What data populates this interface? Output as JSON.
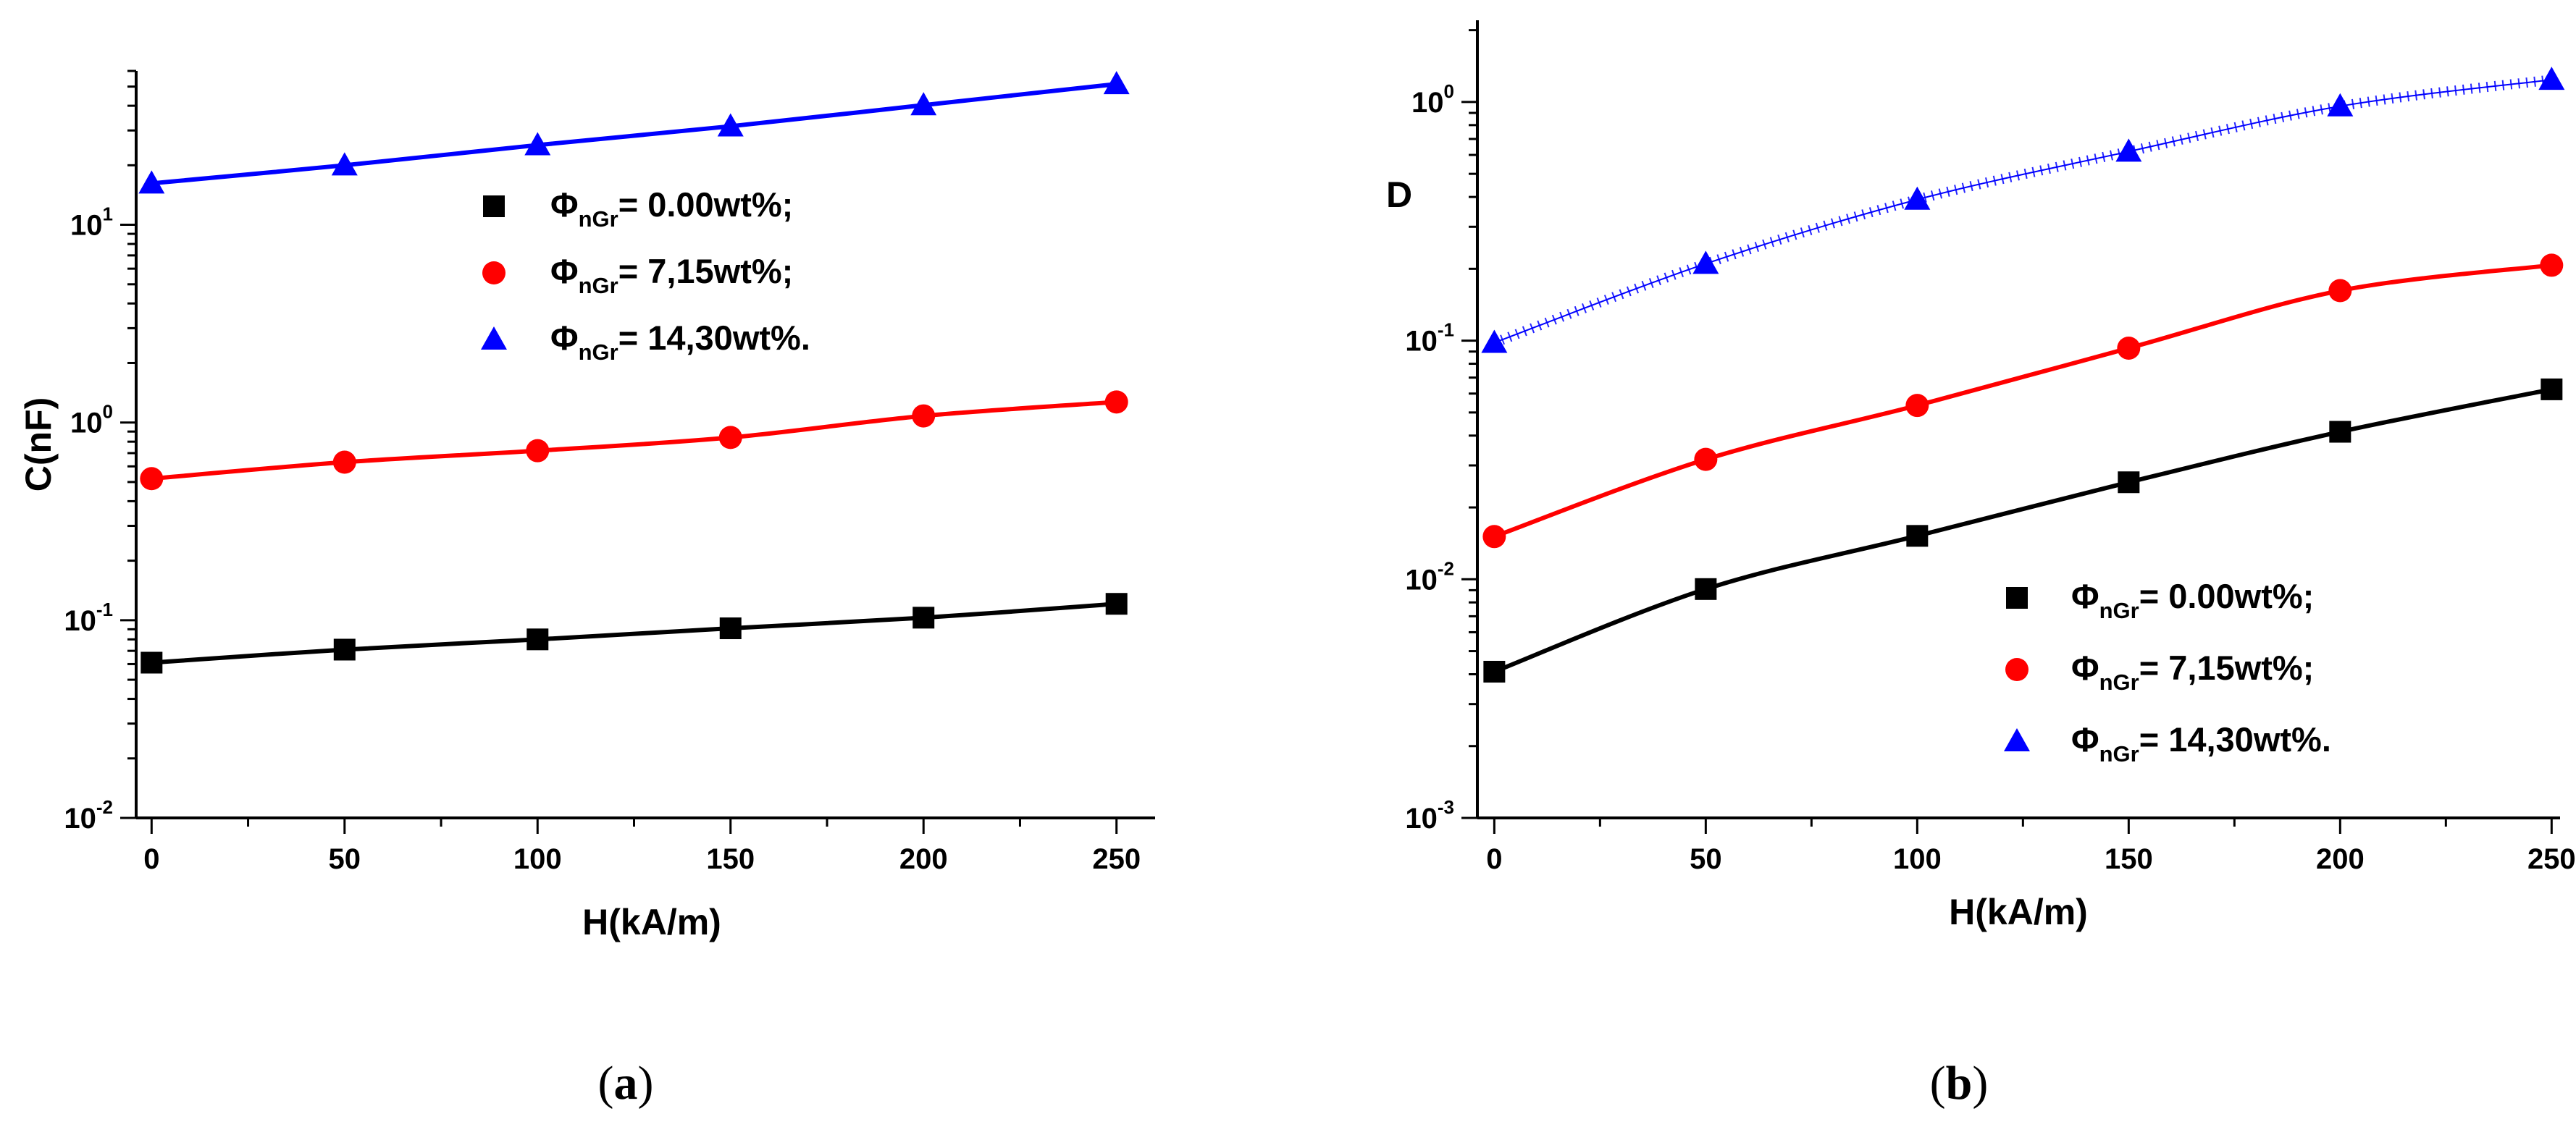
{
  "chart_data": [
    {
      "type": "scatter",
      "panel_label": "(a)",
      "panel_label_parts": [
        "(",
        "a",
        ")"
      ],
      "xlabel": "H(kA/m)",
      "ylabel": "C(nF)",
      "yscale": "log",
      "xlim": [
        -4,
        260
      ],
      "ylim": [
        0.01,
        60
      ],
      "xticks": [
        0,
        50,
        100,
        150,
        200,
        250
      ],
      "xtick_labels": [
        "0",
        "50",
        "100",
        "150",
        "200",
        "250"
      ],
      "yticks": [
        {
          "base": "10",
          "exp": "-2",
          "value": 0.01
        },
        {
          "base": "10",
          "exp": "-1",
          "value": 0.1
        },
        {
          "base": "10",
          "exp": "0",
          "value": 1
        },
        {
          "base": "10",
          "exp": "1",
          "value": 10
        }
      ],
      "legend_position": "center",
      "series": [
        {
          "name": "ΦnGr= 0.00wt%;",
          "legend_symbol": "Φ",
          "legend_sub": "nGr",
          "legend_value": "= 0.00wt%;",
          "marker": "square",
          "color": "#000000",
          "line": "solid",
          "x": [
            0,
            50,
            100,
            150,
            200,
            250
          ],
          "y": [
            0.061,
            0.071,
            0.08,
            0.091,
            0.103,
            0.121
          ]
        },
        {
          "name": "ΦnGr= 7,15wt%;",
          "legend_symbol": "Φ",
          "legend_sub": "nGr",
          "legend_value": "= 7,15wt%;",
          "marker": "circle",
          "color": "#ff0000",
          "line": "solid",
          "x": [
            0,
            50,
            100,
            150,
            200,
            250
          ],
          "y": [
            0.52,
            0.63,
            0.72,
            0.84,
            1.08,
            1.27
          ]
        },
        {
          "name": "ΦnGr= 14,30wt%.",
          "legend_symbol": "Φ",
          "legend_sub": "nGr",
          "legend_value": "= 14,30wt%.",
          "marker": "triangle",
          "color": "#0000ff",
          "line": "solid",
          "x": [
            0,
            50,
            100,
            150,
            200,
            250
          ],
          "y": [
            16.2,
            20.0,
            25.3,
            31.5,
            40.3,
            51.5
          ]
        }
      ]
    },
    {
      "type": "scatter",
      "panel_label": "(b)",
      "panel_label_parts": [
        "(",
        "b",
        ")"
      ],
      "xlabel": "H(kA/m)",
      "ylabel": "D",
      "yscale": "log",
      "xlim": [
        -4,
        252
      ],
      "ylim": [
        0.001,
        2.2
      ],
      "xticks": [
        0,
        50,
        100,
        150,
        200,
        250
      ],
      "xtick_labels": [
        "0",
        "50",
        "100",
        "150",
        "200",
        "250"
      ],
      "yticks": [
        {
          "base": "10",
          "exp": "-3",
          "value": 0.001
        },
        {
          "base": "10",
          "exp": "-2",
          "value": 0.01
        },
        {
          "base": "10",
          "exp": "-1",
          "value": 0.1
        },
        {
          "base": "10",
          "exp": "0",
          "value": 1
        }
      ],
      "yticks_fixed": [
        "1,0"
      ],
      "legend_position": "bottom-right",
      "series": [
        {
          "name": "ΦnGr= 0.00wt%;",
          "legend_symbol": "Φ",
          "legend_sub": "nGr",
          "legend_value": "= 0.00wt%;",
          "marker": "square",
          "color": "#000000",
          "line": "solid",
          "x": [
            0,
            50,
            100,
            150,
            200,
            250
          ],
          "y": [
            0.0041,
            0.0091,
            0.0152,
            0.0255,
            0.0415,
            0.0625
          ]
        },
        {
          "name": "ΦnGr= 7,15wt%;",
          "legend_symbol": "Φ",
          "legend_sub": "nGr",
          "legend_value": "= 7,15wt%;",
          "marker": "circle",
          "color": "#ff0000",
          "line": "solid",
          "x": [
            0,
            50,
            100,
            150,
            200,
            250
          ],
          "y": [
            0.0151,
            0.0318,
            0.0535,
            0.093,
            0.162,
            0.207
          ]
        },
        {
          "name": "ΦnGr= 14,30wt%.",
          "legend_symbol": "Φ",
          "legend_sub": "nGr",
          "legend_value": "= 14,30wt%.",
          "marker": "triangle",
          "color": "#0000ff",
          "line": "hatched",
          "x": [
            0,
            50,
            100,
            150,
            200,
            250
          ],
          "y": [
            0.098,
            0.21,
            0.39,
            0.62,
            0.96,
            1.24
          ]
        }
      ]
    }
  ]
}
